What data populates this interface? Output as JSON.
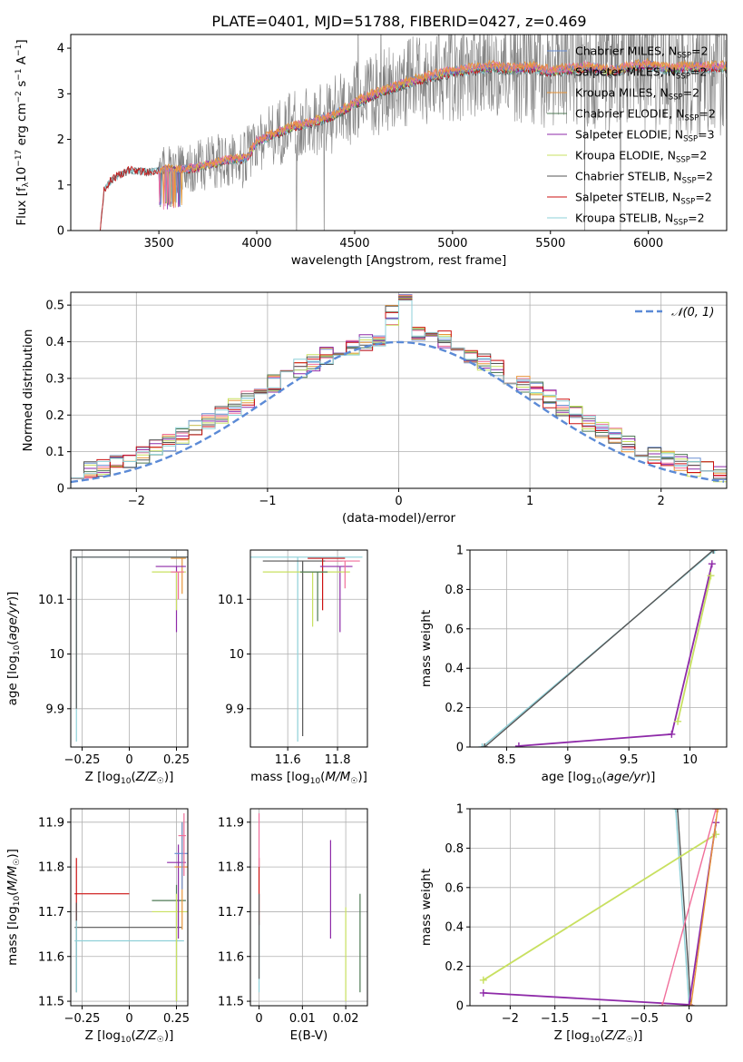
{
  "title": "PLATE=0401, MJD=51788, FIBERID=0427, z=0.469",
  "colors": {
    "chabrier_miles": "#6a8fd4",
    "salpeter_miles": "#f06e9a",
    "kroupa_miles": "#e8953a",
    "chabrier_elodie": "#4f7a55",
    "salpeter_elodie": "#8e2aa8",
    "kroupa_elodie": "#c8e060",
    "chabrier_stelib": "#555555",
    "salpeter_stelib": "#cc1111",
    "kroupa_stelib": "#8ed0d8",
    "data": "#808080",
    "normal": "#5b8ad6"
  },
  "chart_data": [
    {
      "id": "spectrum",
      "type": "line",
      "title": "PLATE=0401, MJD=51788, FIBERID=0427, z=0.469",
      "xlabel": "wavelength [Angstrom, rest frame]",
      "ylabel": "Flux [f_λ 10^-17 erg cm^-2 s^-1 A^-1]",
      "xlim": [
        3050,
        6400
      ],
      "ylim": [
        0,
        4.3
      ],
      "xticks": [
        3500,
        4000,
        4500,
        5000,
        5500,
        6000
      ],
      "yticks": [
        0,
        1,
        2,
        3,
        4
      ],
      "grid": false,
      "legend_position": "top-right",
      "legend": [
        {
          "name": "Chabrier MILES, N_SSP=2",
          "base": "Chabrier MILES, N",
          "sub": "SSP",
          "tail": "=2",
          "color_key": "chabrier_miles"
        },
        {
          "name": "Salpeter MILES, N_SSP=2",
          "base": "Salpeter MILES, N",
          "sub": "SSP",
          "tail": "=2",
          "color_key": "salpeter_miles"
        },
        {
          "name": "Kroupa MILES, N_SSP=2",
          "base": "Kroupa MILES, N",
          "sub": "SSP",
          "tail": "=2",
          "color_key": "kroupa_miles"
        },
        {
          "name": "Chabrier ELODIE, N_SSP=2",
          "base": "Chabrier ELODIE, N",
          "sub": "SSP",
          "tail": "=2",
          "color_key": "chabrier_elodie"
        },
        {
          "name": "Salpeter ELODIE, N_SSP=3",
          "base": "Salpeter ELODIE, N",
          "sub": "SSP",
          "tail": "=3",
          "color_key": "salpeter_elodie"
        },
        {
          "name": "Kroupa ELODIE, N_SSP=2",
          "base": "Kroupa ELODIE, N",
          "sub": "SSP",
          "tail": "=2",
          "color_key": "kroupa_elodie"
        },
        {
          "name": "Chabrier STELIB, N_SSP=2",
          "base": "Chabrier STELIB, N",
          "sub": "SSP",
          "tail": "=2",
          "color_key": "chabrier_stelib"
        },
        {
          "name": "Salpeter STELIB, N_SSP=2",
          "base": "Salpeter STELIB, N",
          "sub": "SSP",
          "tail": "=2",
          "color_key": "salpeter_stelib"
        },
        {
          "name": "Kroupa STELIB, N_SSP=2",
          "base": "Kroupa STELIB, N",
          "sub": "SSP",
          "tail": "=2",
          "color_key": "kroupa_stelib"
        }
      ],
      "continuum": {
        "x": [
          3200,
          3220,
          3260,
          3350,
          3450,
          3550,
          3650,
          3750,
          3850,
          3950,
          4000,
          4100,
          4200,
          4300,
          4400,
          4500,
          4600,
          4700,
          4800,
          4900,
          5000,
          5100,
          5200,
          5300,
          5400,
          5500,
          5600,
          5700,
          5800,
          5900,
          6000,
          6100,
          6200
        ],
        "y": [
          0,
          0.9,
          1.15,
          1.35,
          1.3,
          1.35,
          1.35,
          1.45,
          1.55,
          1.6,
          1.95,
          2.15,
          2.3,
          2.4,
          2.55,
          2.8,
          3.0,
          3.15,
          3.3,
          3.4,
          3.5,
          3.55,
          3.6,
          3.55,
          3.6,
          3.5,
          3.55,
          3.6,
          3.5,
          3.6,
          3.65,
          3.55,
          3.6
        ]
      }
    },
    {
      "id": "residuals",
      "type": "line",
      "xlabel": "(data-model)/error",
      "ylabel": "Normed distribution",
      "xlim": [
        -2.5,
        2.5
      ],
      "ylim": [
        0,
        0.535
      ],
      "xticks": [
        -2,
        -1,
        0,
        1,
        2
      ],
      "yticks": [
        0.0,
        0.1,
        0.2,
        0.3,
        0.4,
        0.5
      ],
      "grid": true,
      "legend_position": "top-right",
      "normal_label": "𝒩(0, 1)"
    },
    {
      "id": "age-vs-Z",
      "type": "scatter",
      "xlabel": "Z [log10(Z/Z☉)]",
      "ylabel": "age [log10(age/yr)]",
      "xlim": [
        -0.31,
        0.31
      ],
      "ylim": [
        9.83,
        10.19
      ],
      "xticks": [
        -0.25,
        0.0,
        0.25
      ],
      "yticks": [
        9.9,
        10.0,
        10.1
      ],
      "grid": true
    },
    {
      "id": "age-vs-mass",
      "type": "scatter",
      "xlabel": "mass [log10(M/M☉)]",
      "ylabel": "",
      "xlim": [
        11.45,
        11.92
      ],
      "ylim": [
        9.83,
        10.19
      ],
      "xticks": [
        11.6,
        11.8
      ],
      "yticks": [
        9.9,
        10.0,
        10.1
      ],
      "grid": true
    },
    {
      "id": "weight-vs-age",
      "type": "line",
      "xlabel": "age [log10(age/yr)]",
      "ylabel": "mass weight",
      "xlim": [
        8.2,
        10.3
      ],
      "ylim": [
        0,
        1.0
      ],
      "xticks": [
        8.5,
        9.0,
        9.5,
        10.0
      ],
      "yticks": [
        0.0,
        0.2,
        0.4,
        0.6,
        0.8,
        1.0
      ],
      "grid": true,
      "series": [
        {
          "color_key": "kroupa_stelib",
          "x": [
            8.3,
            10.2
          ],
          "y": [
            0.0,
            1.0
          ]
        },
        {
          "color_key": "chabrier_stelib",
          "x": [
            8.32,
            10.19
          ],
          "y": [
            0.0,
            1.0
          ]
        },
        {
          "color_key": "salpeter_elodie",
          "x": [
            8.6,
            9.85,
            10.18
          ],
          "y": [
            0.005,
            0.065,
            0.93
          ]
        },
        {
          "color_key": "kroupa_elodie",
          "x": [
            9.9,
            10.17
          ],
          "y": [
            0.13,
            0.87
          ]
        }
      ]
    },
    {
      "id": "mass-vs-Z",
      "type": "scatter",
      "xlabel": "Z [log10(Z/Z☉)]",
      "ylabel": "mass [log10(M/M☉)]",
      "xlim": [
        -0.31,
        0.31
      ],
      "ylim": [
        11.49,
        11.93
      ],
      "xticks": [
        -0.25,
        0.0,
        0.25
      ],
      "yticks": [
        11.5,
        11.6,
        11.7,
        11.8,
        11.9
      ],
      "grid": true
    },
    {
      "id": "mass-vs-ebv",
      "type": "scatter",
      "xlabel": "E(B-V)",
      "ylabel": "",
      "xlim": [
        -0.002,
        0.025
      ],
      "ylim": [
        11.49,
        11.93
      ],
      "xticks": [
        0.0,
        0.01,
        0.02
      ],
      "yticks": [
        11.5,
        11.6,
        11.7,
        11.8,
        11.9
      ],
      "grid": true
    },
    {
      "id": "weight-vs-Z",
      "type": "line",
      "xlabel": "Z [log10(Z/Z☉)]",
      "ylabel": "mass weight",
      "xlim": [
        -2.45,
        0.42
      ],
      "ylim": [
        0,
        1.0
      ],
      "xticks": [
        -2.0,
        -1.5,
        -1.0,
        -0.5,
        0.0
      ],
      "yticks": [
        0.0,
        0.2,
        0.4,
        0.6,
        0.8,
        1.0
      ],
      "grid": true,
      "series": [
        {
          "color_key": "kroupa_stelib",
          "x": [
            -0.15,
            0.0
          ],
          "y": [
            1.0,
            0.0
          ]
        },
        {
          "color_key": "chabrier_stelib",
          "x": [
            -0.13,
            0.02
          ],
          "y": [
            1.0,
            0.0
          ]
        },
        {
          "color_key": "kroupa_elodie",
          "x": [
            -2.3,
            0.3
          ],
          "y": [
            0.13,
            0.87
          ]
        },
        {
          "color_key": "salpeter_elodie",
          "x": [
            -2.3,
            0.0,
            0.3
          ],
          "y": [
            0.065,
            0.005,
            0.93
          ]
        },
        {
          "color_key": "salpeter_miles",
          "x": [
            -0.3,
            0.3
          ],
          "y": [
            0.0,
            1.0
          ]
        },
        {
          "color_key": "kroupa_miles",
          "x": [
            0.02,
            0.32
          ],
          "y": [
            0.0,
            1.0
          ]
        }
      ]
    }
  ]
}
